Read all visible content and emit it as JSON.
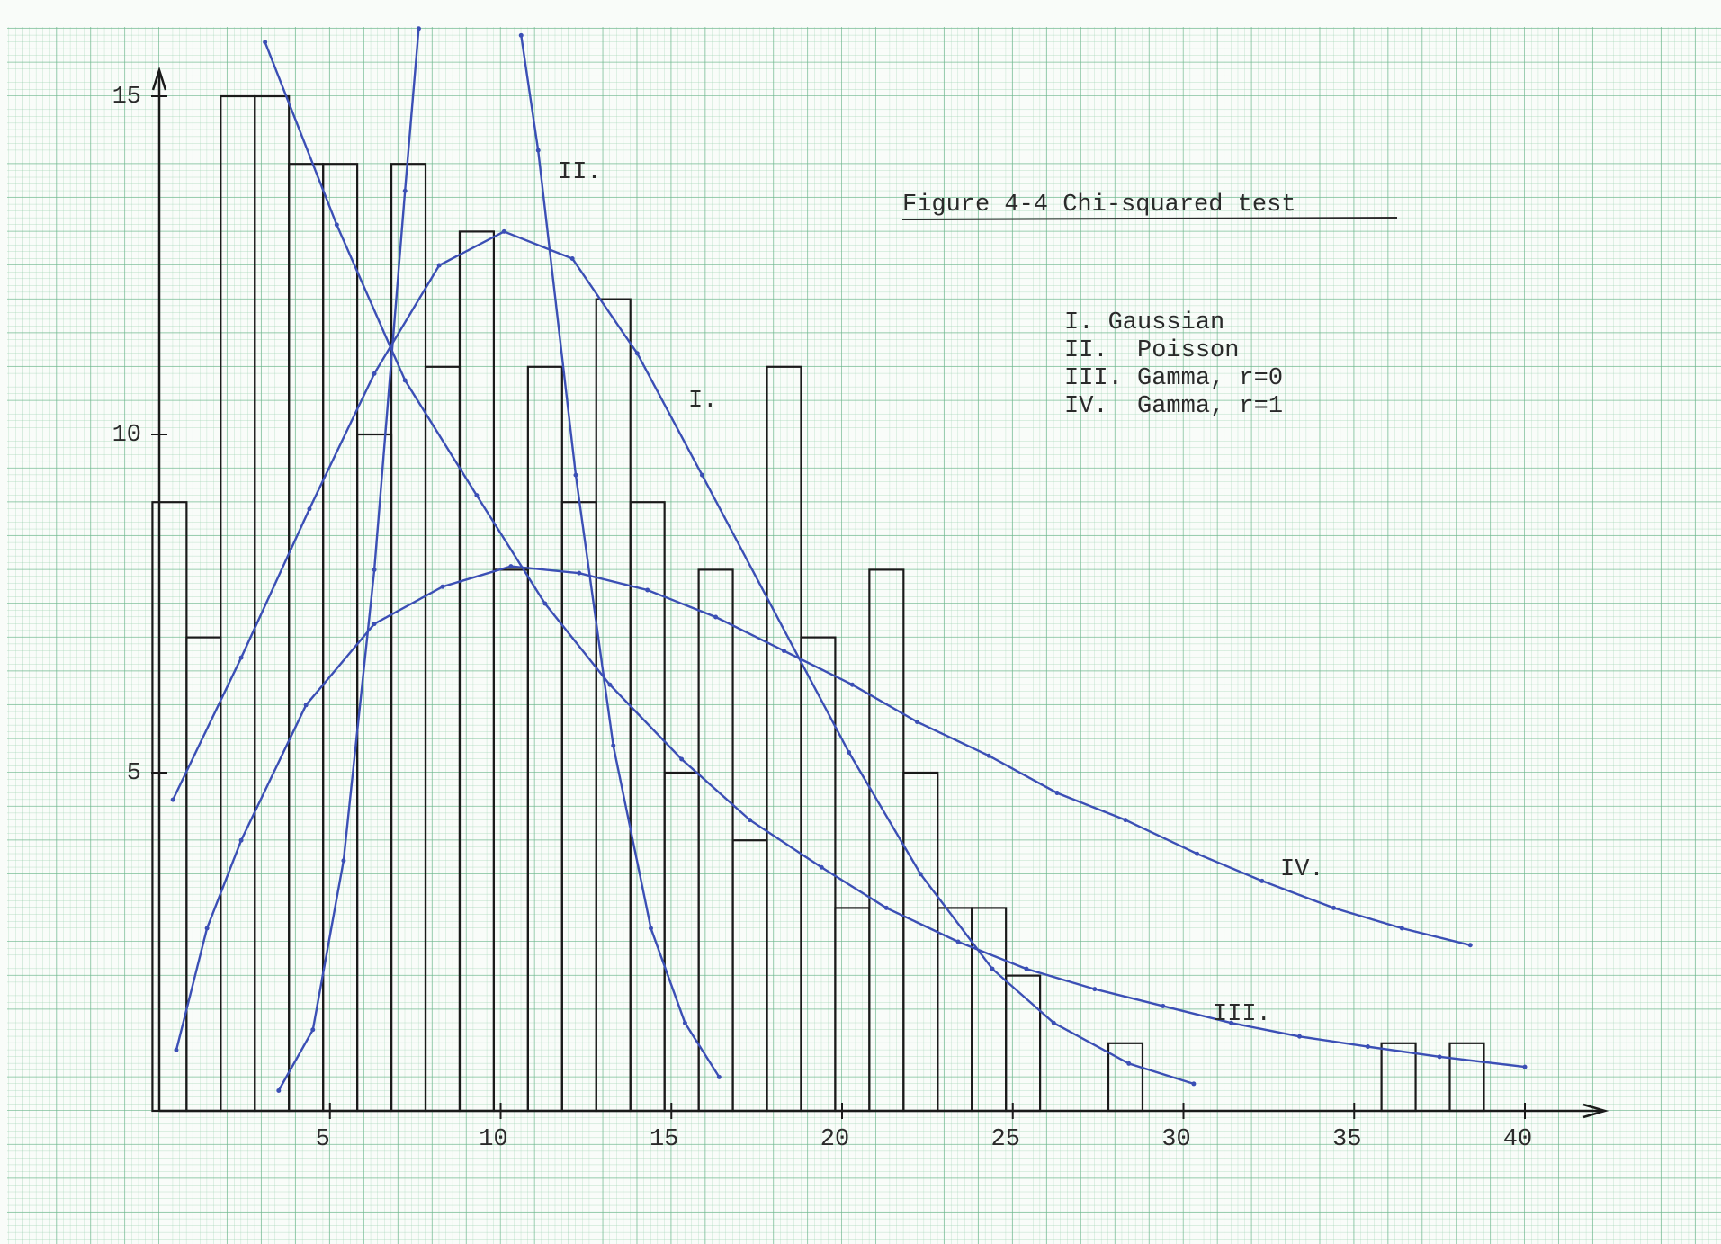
{
  "chart_data": {
    "type": "histogram",
    "title": "Figure 4-4  Chi-squared test",
    "bins": [
      -0.2,
      0.8,
      1.8,
      2.8,
      3.8,
      4.8,
      5.8,
      6.8,
      7.8,
      8.8,
      9.8,
      10.8,
      11.8,
      12.8,
      13.8,
      14.8,
      15.8,
      16.8,
      17.8,
      18.8,
      19.8,
      20.8,
      21.8,
      22.8,
      23.8,
      24.8,
      25.8,
      26.8,
      27.8,
      28.8,
      29.8,
      30.8,
      31.8,
      32.8,
      33.8,
      34.8,
      35.8,
      36.8,
      37.8,
      38.8,
      39.8
    ],
    "counts": [
      9,
      7,
      15,
      15,
      14,
      14,
      10,
      14,
      11,
      13,
      8,
      11,
      9,
      12,
      9,
      5,
      8,
      4,
      11,
      7,
      3,
      8,
      5,
      3,
      3,
      2,
      0,
      0,
      1,
      0,
      0,
      0,
      0,
      0,
      0,
      0,
      1,
      0,
      1,
      0
    ],
    "color": "#1a1a1a",
    "series": [
      {
        "name": "I. Gaussian",
        "color": "#3b4fb5",
        "x": [
          0.4,
          2.4,
          4.4,
          6.3,
          8.2,
          10.1,
          12.1,
          14.0,
          15.9,
          20.2,
          22.3,
          24.4,
          26.2,
          28.4,
          30.3
        ],
        "y": [
          4.6,
          6.7,
          8.9,
          10.9,
          12.5,
          13.0,
          12.6,
          11.2,
          9.4,
          5.3,
          3.5,
          2.1,
          1.3,
          0.7,
          0.4
        ]
      },
      {
        "name": "II.  Poisson",
        "color": "#3b4fb5",
        "x": [
          3.5,
          4.5,
          5.4,
          6.3,
          7.2,
          7.6,
          9.1,
          10.6,
          11.1,
          12.2,
          13.3,
          14.4,
          15.4,
          16.4
        ],
        "y": [
          0.3,
          1.2,
          3.7,
          8.0,
          13.6,
          16,
          null,
          15.9,
          14.2,
          9.4,
          5.4,
          2.7,
          1.3,
          0.5
        ]
      },
      {
        "name": "III. Gamma, r=0",
        "color": "#3b4fb5",
        "x": [
          3.1,
          5.2,
          7.2,
          9.3,
          11.3,
          13.2,
          15.3,
          17.3,
          19.4,
          21.3,
          23.4,
          25.4,
          27.4,
          29.4,
          31.4,
          33.4,
          35.4,
          37.5,
          40.0
        ],
        "y": [
          15.8,
          13.1,
          10.8,
          9.1,
          7.5,
          6.3,
          5.2,
          4.3,
          3.6,
          3.0,
          2.5,
          2.1,
          1.8,
          1.55,
          1.3,
          1.1,
          0.95,
          0.8,
          0.65
        ]
      },
      {
        "name": "IV.  Gamma, r=1",
        "color": "#3b4fb5",
        "x": [
          0.5,
          1.4,
          2.4,
          4.3,
          6.3,
          8.3,
          10.3,
          12.3,
          14.3,
          16.3,
          18.3,
          20.3,
          22.2,
          24.3,
          26.3,
          28.3,
          30.4,
          32.3,
          34.4,
          36.4,
          38.4
        ],
        "y": [
          0.9,
          2.7,
          4.0,
          6.0,
          7.2,
          7.75,
          8.05,
          7.95,
          7.7,
          7.3,
          6.8,
          6.3,
          5.75,
          5.25,
          4.7,
          4.3,
          3.8,
          3.4,
          3.0,
          2.7,
          2.45
        ]
      }
    ],
    "annotations": [
      "I.",
      "II.",
      "III.",
      "IV."
    ],
    "xlim": [
      0,
      42
    ],
    "ylim": [
      0,
      16
    ],
    "xticks": [
      5,
      10,
      15,
      20,
      25,
      30,
      35,
      40
    ],
    "yticks": [
      5,
      10,
      15
    ]
  }
}
